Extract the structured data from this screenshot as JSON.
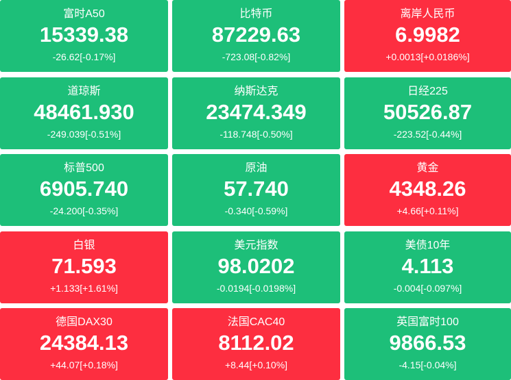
{
  "tiles": [
    {
      "name": "富时A50",
      "value": "15339.38",
      "change": "-26.62[-0.17%]",
      "color": "#1dbf79"
    },
    {
      "name": "比特币",
      "value": "87229.63",
      "change": "-723.08[-0.82%]",
      "color": "#1dbf79"
    },
    {
      "name": "离岸人民币",
      "value": "6.9982",
      "change": "+0.0013[+0.0186%]",
      "color": "#fd2e40"
    },
    {
      "name": "道琼斯",
      "value": "48461.930",
      "change": "-249.039[-0.51%]",
      "color": "#1dbf79"
    },
    {
      "name": "纳斯达克",
      "value": "23474.349",
      "change": "-118.748[-0.50%]",
      "color": "#1dbf79"
    },
    {
      "name": "日经225",
      "value": "50526.87",
      "change": "-223.52[-0.44%]",
      "color": "#1dbf79"
    },
    {
      "name": "标普500",
      "value": "6905.740",
      "change": "-24.200[-0.35%]",
      "color": "#1dbf79"
    },
    {
      "name": "原油",
      "value": "57.740",
      "change": "-0.340[-0.59%]",
      "color": "#1dbf79"
    },
    {
      "name": "黄金",
      "value": "4348.26",
      "change": "+4.66[+0.11%]",
      "color": "#fd2e40"
    },
    {
      "name": "白银",
      "value": "71.593",
      "change": "+1.133[+1.61%]",
      "color": "#fd2e40"
    },
    {
      "name": "美元指数",
      "value": "98.0202",
      "change": "-0.0194[-0.0198%]",
      "color": "#1dbf79"
    },
    {
      "name": "美债10年",
      "value": "4.113",
      "change": "-0.004[-0.097%]",
      "color": "#1dbf79"
    },
    {
      "name": "德国DAX30",
      "value": "24384.13",
      "change": "+44.07[+0.18%]",
      "color": "#fd2e40"
    },
    {
      "name": "法国CAC40",
      "value": "8112.02",
      "change": "+8.44[+0.10%]",
      "color": "#fd2e40"
    },
    {
      "name": "英国富时100",
      "value": "9866.53",
      "change": "-4.15[-0.04%]",
      "color": "#1dbf79"
    }
  ]
}
